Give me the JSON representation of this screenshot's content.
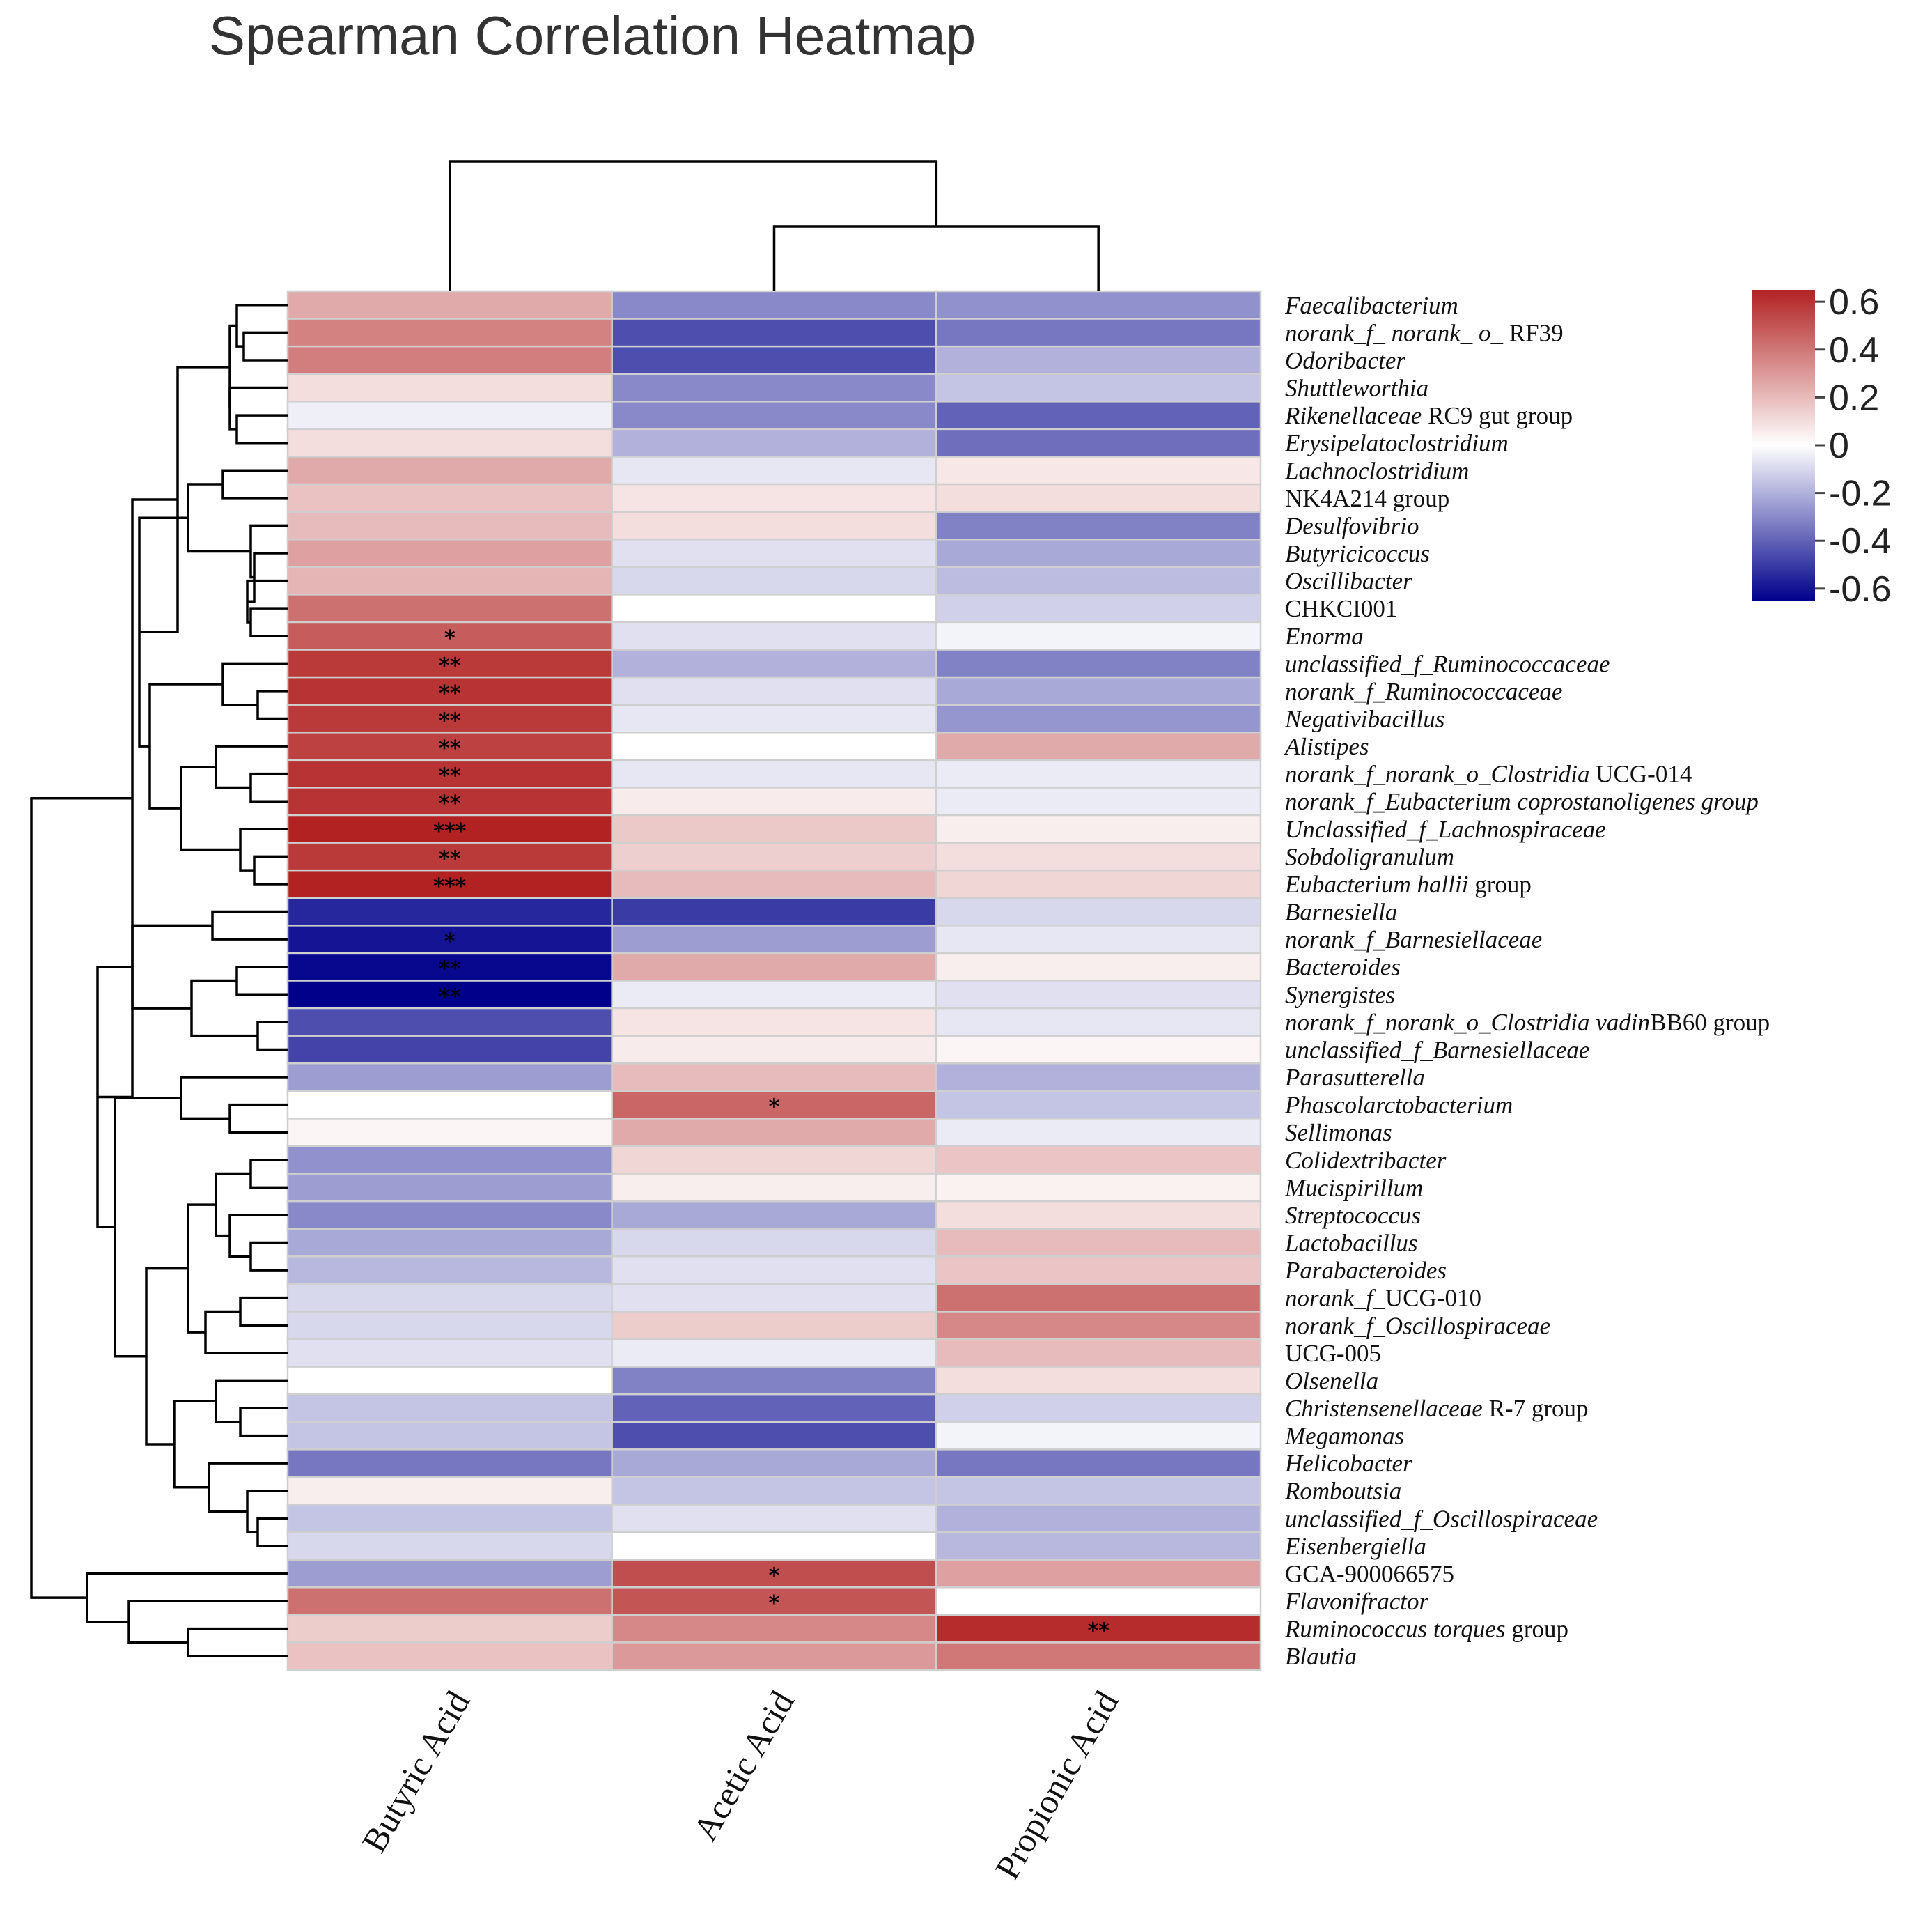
{
  "chart_data": {
    "type": "heatmap",
    "title": "Spearman Correlation Heatmap",
    "columns": [
      "Butyric Acid",
      "Acetic Acid",
      "Propionic Acid"
    ],
    "rows": [
      {
        "segments": [
          {
            "t": "Faecalibacterium",
            "i": true
          }
        ],
        "values": [
          0.25,
          -0.3,
          -0.28
        ],
        "sig": [
          "",
          "",
          ""
        ]
      },
      {
        "segments": [
          {
            "t": "norank_f_ norank_ o_ ",
            "i": true
          },
          {
            "t": "RF39",
            "i": false
          }
        ],
        "values": [
          0.37,
          -0.45,
          -0.35
        ],
        "sig": [
          "",
          "",
          ""
        ]
      },
      {
        "segments": [
          {
            "t": "Odoribacter",
            "i": true
          }
        ],
        "values": [
          0.38,
          -0.45,
          -0.2
        ],
        "sig": [
          "",
          "",
          ""
        ]
      },
      {
        "segments": [
          {
            "t": "Shuttleworthia",
            "i": true
          }
        ],
        "values": [
          0.1,
          -0.3,
          -0.15
        ],
        "sig": [
          "",
          "",
          ""
        ]
      },
      {
        "segments": [
          {
            "t": "Rikenellaceae ",
            "i": true
          },
          {
            "t": "RC9 gut group",
            "i": false
          }
        ],
        "values": [
          -0.04,
          -0.3,
          -0.4
        ],
        "sig": [
          "",
          "",
          ""
        ]
      },
      {
        "segments": [
          {
            "t": "Erysipelatoclostridium",
            "i": true
          }
        ],
        "values": [
          0.1,
          -0.2,
          -0.37
        ],
        "sig": [
          "",
          "",
          ""
        ]
      },
      {
        "segments": [
          {
            "t": "Lachnoclostridium",
            "i": true
          }
        ],
        "values": [
          0.25,
          -0.06,
          0.07
        ],
        "sig": [
          "",
          "",
          ""
        ]
      },
      {
        "segments": [
          {
            "t": "NK4A214 group",
            "i": false
          }
        ],
        "values": [
          0.18,
          0.08,
          0.1
        ],
        "sig": [
          "",
          "",
          ""
        ]
      },
      {
        "segments": [
          {
            "t": "Desulfovibrio",
            "i": true
          }
        ],
        "values": [
          0.2,
          0.1,
          -0.32
        ],
        "sig": [
          "",
          "",
          ""
        ]
      },
      {
        "segments": [
          {
            "t": "Butyricicoccus",
            "i": true
          }
        ],
        "values": [
          0.28,
          -0.08,
          -0.22
        ],
        "sig": [
          "",
          "",
          ""
        ]
      },
      {
        "segments": [
          {
            "t": "Oscillibacter",
            "i": true
          }
        ],
        "values": [
          0.22,
          -0.1,
          -0.17
        ],
        "sig": [
          "",
          "",
          ""
        ]
      },
      {
        "segments": [
          {
            "t": "CHKCI001",
            "i": false
          }
        ],
        "values": [
          0.42,
          0.0,
          -0.12
        ],
        "sig": [
          "",
          "",
          ""
        ]
      },
      {
        "segments": [
          {
            "t": "Enorma",
            "i": true
          }
        ],
        "values": [
          0.48,
          -0.08,
          -0.03
        ],
        "sig": [
          "*",
          "",
          ""
        ]
      },
      {
        "segments": [
          {
            "t": "unclassified_f_Ruminococcaceae",
            "i": true
          }
        ],
        "values": [
          0.58,
          -0.2,
          -0.32
        ],
        "sig": [
          "**",
          "",
          ""
        ]
      },
      {
        "segments": [
          {
            "t": "norank_f_Ruminococcaceae",
            "i": true
          }
        ],
        "values": [
          0.6,
          -0.08,
          -0.22
        ],
        "sig": [
          "**",
          "",
          ""
        ]
      },
      {
        "segments": [
          {
            "t": "Negativibacillus",
            "i": true
          }
        ],
        "values": [
          0.58,
          -0.06,
          -0.27
        ],
        "sig": [
          "**",
          "",
          ""
        ]
      },
      {
        "segments": [
          {
            "t": "Alistipes",
            "i": true
          }
        ],
        "values": [
          0.56,
          0.0,
          0.25
        ],
        "sig": [
          "**",
          "",
          ""
        ]
      },
      {
        "segments": [
          {
            "t": "norank_f_norank_o_Clostridia ",
            "i": true
          },
          {
            "t": "UCG-014",
            "i": false
          }
        ],
        "values": [
          0.6,
          -0.06,
          -0.05
        ],
        "sig": [
          "**",
          "",
          ""
        ]
      },
      {
        "segments": [
          {
            "t": "norank_f_Eubacterium coprostanoligenes group",
            "i": true
          }
        ],
        "values": [
          0.6,
          0.06,
          -0.05
        ],
        "sig": [
          "**",
          "",
          ""
        ]
      },
      {
        "segments": [
          {
            "t": "Unclassified_f_Lachnospiraceae",
            "i": true
          }
        ],
        "values": [
          0.66,
          0.16,
          0.05
        ],
        "sig": [
          "***",
          "",
          ""
        ]
      },
      {
        "segments": [
          {
            "t": "Sobdoligranulum",
            "i": true
          }
        ],
        "values": [
          0.58,
          0.14,
          0.1
        ],
        "sig": [
          "**",
          "",
          ""
        ]
      },
      {
        "segments": [
          {
            "t": "Eubacterium hallii ",
            "i": true
          },
          {
            "t": "group",
            "i": false
          }
        ],
        "values": [
          0.66,
          0.2,
          0.12
        ],
        "sig": [
          "***",
          "",
          ""
        ]
      },
      {
        "segments": [
          {
            "t": "Barnesiella",
            "i": true
          }
        ],
        "values": [
          -0.55,
          -0.5,
          -0.1
        ],
        "sig": [
          "",
          "",
          ""
        ]
      },
      {
        "segments": [
          {
            "t": "norank_f_Barnesiellaceae",
            "i": true
          }
        ],
        "values": [
          -0.6,
          -0.25,
          -0.06
        ],
        "sig": [
          "*",
          "",
          ""
        ]
      },
      {
        "segments": [
          {
            "t": "Bacteroides",
            "i": true
          }
        ],
        "values": [
          -0.63,
          0.25,
          0.05
        ],
        "sig": [
          "**",
          "",
          ""
        ]
      },
      {
        "segments": [
          {
            "t": "Synergistes",
            "i": true
          }
        ],
        "values": [
          -0.66,
          -0.05,
          -0.08
        ],
        "sig": [
          "**",
          "",
          ""
        ]
      },
      {
        "segments": [
          {
            "t": "norank_f_norank_o_Clostridia vadin",
            "i": true
          },
          {
            "t": "BB60 group",
            "i": false
          }
        ],
        "values": [
          -0.45,
          0.08,
          -0.06
        ],
        "sig": [
          "",
          "",
          ""
        ]
      },
      {
        "segments": [
          {
            "t": "unclassified_f_Barnesiellaceae",
            "i": true
          }
        ],
        "values": [
          -0.48,
          0.06,
          0.03
        ],
        "sig": [
          "",
          "",
          ""
        ]
      },
      {
        "segments": [
          {
            "t": "Parasutterella",
            "i": true
          }
        ],
        "values": [
          -0.25,
          0.2,
          -0.2
        ],
        "sig": [
          "",
          "",
          ""
        ]
      },
      {
        "segments": [
          {
            "t": "Phascolarctobacterium",
            "i": true
          }
        ],
        "values": [
          0.0,
          0.45,
          -0.15
        ],
        "sig": [
          "",
          "*",
          ""
        ]
      },
      {
        "segments": [
          {
            "t": "Sellimonas",
            "i": true
          }
        ],
        "values": [
          0.03,
          0.25,
          -0.05
        ],
        "sig": [
          "",
          "",
          ""
        ]
      },
      {
        "segments": [
          {
            "t": "Colidextribacter",
            "i": true
          }
        ],
        "values": [
          -0.28,
          0.12,
          0.17
        ],
        "sig": [
          "",
          "",
          ""
        ]
      },
      {
        "segments": [
          {
            "t": "Mucispirillum",
            "i": true
          }
        ],
        "values": [
          -0.25,
          0.05,
          0.04
        ],
        "sig": [
          "",
          "",
          ""
        ]
      },
      {
        "segments": [
          {
            "t": "Streptococcus",
            "i": true
          }
        ],
        "values": [
          -0.3,
          -0.22,
          0.1
        ],
        "sig": [
          "",
          "",
          ""
        ]
      },
      {
        "segments": [
          {
            "t": "Lactobacillus",
            "i": true
          }
        ],
        "values": [
          -0.22,
          -0.1,
          0.2
        ],
        "sig": [
          "",
          "",
          ""
        ]
      },
      {
        "segments": [
          {
            "t": "Parabacteroides",
            "i": true
          }
        ],
        "values": [
          -0.18,
          -0.08,
          0.17
        ],
        "sig": [
          "",
          "",
          ""
        ]
      },
      {
        "segments": [
          {
            "t": "norank_f_",
            "i": true
          },
          {
            "t": "UCG-010",
            "i": false
          }
        ],
        "values": [
          -0.1,
          -0.08,
          0.42
        ],
        "sig": [
          "",
          "",
          ""
        ]
      },
      {
        "segments": [
          {
            "t": "norank_f_Oscillospiraceae",
            "i": true
          }
        ],
        "values": [
          -0.1,
          0.15,
          0.35
        ],
        "sig": [
          "",
          "",
          ""
        ]
      },
      {
        "segments": [
          {
            "t": "UCG-005",
            "i": false
          }
        ],
        "values": [
          -0.08,
          -0.05,
          0.2
        ],
        "sig": [
          "",
          "",
          ""
        ]
      },
      {
        "segments": [
          {
            "t": "Olsenella",
            "i": true
          }
        ],
        "values": [
          0.0,
          -0.32,
          0.1
        ],
        "sig": [
          "",
          "",
          ""
        ]
      },
      {
        "segments": [
          {
            "t": "Christensenellaceae ",
            "i": true
          },
          {
            "t": "R-7 group",
            "i": false
          }
        ],
        "values": [
          -0.15,
          -0.4,
          -0.12
        ],
        "sig": [
          "",
          "",
          ""
        ]
      },
      {
        "segments": [
          {
            "t": "Megamonas",
            "i": true
          }
        ],
        "values": [
          -0.15,
          -0.45,
          -0.03
        ],
        "sig": [
          "",
          "",
          ""
        ]
      },
      {
        "segments": [
          {
            "t": "Helicobacter",
            "i": true
          }
        ],
        "values": [
          -0.35,
          -0.22,
          -0.35
        ],
        "sig": [
          "",
          "",
          ""
        ]
      },
      {
        "segments": [
          {
            "t": "Romboutsia",
            "i": true
          }
        ],
        "values": [
          0.05,
          -0.15,
          -0.15
        ],
        "sig": [
          "",
          "",
          ""
        ]
      },
      {
        "segments": [
          {
            "t": "unclassified_f_Oscillospiraceae",
            "i": true
          }
        ],
        "values": [
          -0.15,
          -0.08,
          -0.2
        ],
        "sig": [
          "",
          "",
          ""
        ]
      },
      {
        "segments": [
          {
            "t": "Eisenbergiella",
            "i": true
          }
        ],
        "values": [
          -0.1,
          0.0,
          -0.18
        ],
        "sig": [
          "",
          "",
          ""
        ]
      },
      {
        "segments": [
          {
            "t": "GCA-900066575",
            "i": false
          }
        ],
        "values": [
          -0.25,
          0.52,
          0.28
        ],
        "sig": [
          "",
          "*",
          ""
        ]
      },
      {
        "segments": [
          {
            "t": "Flavonifractor",
            "i": true
          }
        ],
        "values": [
          0.42,
          0.5,
          0.0
        ],
        "sig": [
          "",
          "*",
          ""
        ]
      },
      {
        "segments": [
          {
            "t": "Ruminococcus torques ",
            "i": true
          },
          {
            "t": "group",
            "i": false
          }
        ],
        "values": [
          0.15,
          0.35,
          0.62
        ],
        "sig": [
          "",
          "",
          "**"
        ]
      },
      {
        "segments": [
          {
            "t": "Blautia",
            "i": true
          }
        ],
        "values": [
          0.18,
          0.3,
          0.4
        ],
        "sig": [
          "",
          "",
          ""
        ]
      }
    ],
    "colorbar": {
      "min": -0.65,
      "max": 0.65,
      "ticks": [
        0.6,
        0.4,
        0.2,
        0,
        -0.2,
        -0.4,
        -0.6
      ],
      "tick_labels": [
        "0.6",
        "0.4",
        "0.2",
        "0",
        "-0.2",
        "-0.4",
        "-0.6"
      ]
    },
    "colors": {
      "low": "#00008b",
      "mid": "#ffffff",
      "high": "#b22222",
      "grid": "#cfcfcf",
      "tree": "#000000"
    }
  }
}
